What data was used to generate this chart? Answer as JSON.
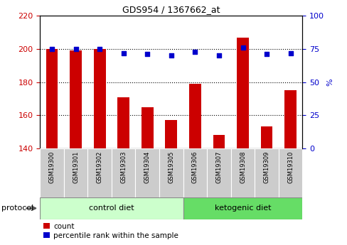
{
  "title": "GDS954 / 1367662_at",
  "samples": [
    "GSM19300",
    "GSM19301",
    "GSM19302",
    "GSM19303",
    "GSM19304",
    "GSM19305",
    "GSM19306",
    "GSM19307",
    "GSM19308",
    "GSM19309",
    "GSM19310"
  ],
  "count_values": [
    200,
    199,
    200,
    171,
    165,
    157,
    179,
    148,
    207,
    153,
    175
  ],
  "percentile_values": [
    75,
    75,
    75,
    72,
    71,
    70,
    73,
    70,
    76,
    71,
    72
  ],
  "ylim_left": [
    140,
    220
  ],
  "ylim_right": [
    0,
    100
  ],
  "yticks_left": [
    140,
    160,
    180,
    200,
    220
  ],
  "yticks_right": [
    0,
    25,
    50,
    75,
    100
  ],
  "bar_color": "#cc0000",
  "scatter_color": "#0000cc",
  "control_diet_samples": 6,
  "ketogenic_diet_samples": 5,
  "protocol_group_labels": [
    "control diet",
    "ketogenic diet"
  ],
  "protocol_group_colors": [
    "#ccffcc",
    "#66dd66"
  ],
  "legend_count_label": "count",
  "legend_pct_label": "percentile rank within the sample",
  "protocol_label": "protocol",
  "grid_color": "black",
  "xtick_bg_color": "#cccccc",
  "right_axis_label": "%"
}
